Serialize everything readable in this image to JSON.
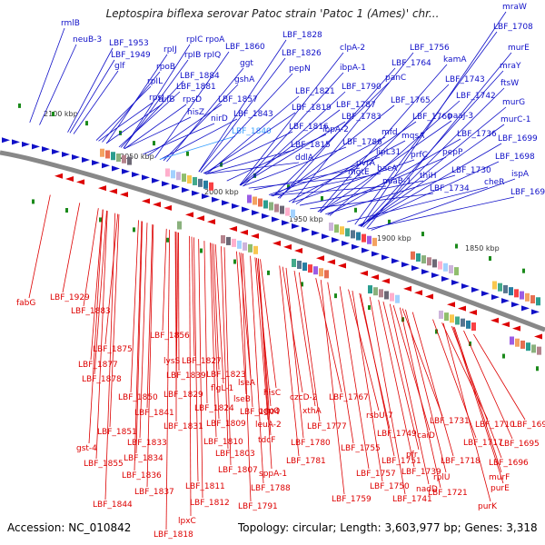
{
  "title": "Leptospira biflexa serovar Patoc strain 'Patoc 1 (Ames)' chr...",
  "footer": {
    "accession": "Accession: NC_010842",
    "summary": "Topology: circular; Length: 3,603,977 bp; Genes: 3,318"
  },
  "scale_labels": [
    "2100 kbp",
    "2050 kbp",
    "2000 kbp",
    "1950 kbp",
    "1900 kbp",
    "1850 kbp"
  ],
  "colors": {
    "upper": "#1010c8",
    "lower": "#dd0000",
    "highlight": "#3aa0ff",
    "backbone": "#888888"
  },
  "upper_labels": [
    "rmlB",
    "neuB-3",
    "LBF_1953",
    "LBF_1949",
    "glf",
    "rpIJ",
    "rpoB",
    "rpIL",
    "rpsJ",
    "tufB",
    "rpIC rpoA",
    "rpIB rpIQ",
    "LBF_1884",
    "LBF_1881",
    "rpsD",
    "hisZ",
    "nirD",
    "LBF_1860",
    "ggt",
    "gshA",
    "LBF_1857",
    "LBF_1843",
    "LBF_1840",
    "LBF_1828",
    "LBF_1826",
    "pepN",
    "LBF_1821",
    "LBF_1819",
    "LBF_1816",
    "LBF_1815",
    "ddlA",
    "clpA-2",
    "ibpA-1",
    "LBF_1790",
    "LBF_1787",
    "LBF_1783",
    "ibpA-2",
    "LBF_1786",
    "uvrA",
    "mgtE",
    "panC",
    "LBF_1765",
    "mfd",
    "lipL31",
    "bacA",
    "miaB-1",
    "LBF_1756",
    "LBF_1764",
    "LBF_1760",
    "mqsA",
    "prfC",
    "thiH",
    "kamA",
    "LBF_1743",
    "LBF_1742",
    "paaJ-3",
    "LBF_1736",
    "pepP",
    "LBF_1730",
    "LBF_1734",
    "mraW",
    "LBF_1708",
    "murE",
    "mraY",
    "ftsW",
    "murG",
    "murC-1",
    "LBF_1699",
    "LBF_1698",
    "ispA",
    "cheR",
    "LBF_1694"
  ],
  "lower_labels": [
    "fabG",
    "LBF_1929",
    "LBF_1883",
    "LBF_1875",
    "LBF_1877",
    "LBF_1878",
    "LBF_1850",
    "LBF_1856",
    "lysS",
    "LBF_1839",
    "LBF_1841",
    "LBF_1829",
    "LBF_1851",
    "LBF_1831",
    "gst-4",
    "LBF_1833",
    "LBF_1855",
    "LBF_1834",
    "LBF_1836",
    "LBF_1837",
    "LBF_1844",
    "LBF_1827",
    "LBF_1823",
    "LBF_1824",
    "flgL-1",
    "lseA",
    "lseB",
    "LBF_1804",
    "LBF_1809",
    "LBF_1810",
    "LBF_1803",
    "LBF_1807",
    "LBF_1811",
    "LBF_1812",
    "lpxC",
    "LBF_1818",
    "hisC",
    "ugpQ",
    "leuA-2",
    "tdcF",
    "czcD-2",
    "xthA",
    "LBF_1777",
    "LBF_1780",
    "LBF_1781",
    "LBF_1788",
    "sppA-1",
    "LBF_1791",
    "LBF_1767",
    "rsbU-7",
    "LBF_1755",
    "LBF_1749",
    "LBF_1751",
    "LBF_1757",
    "LBF_1750",
    "LBF_1759",
    "LBF_1741",
    "LBF_1739",
    "pfr",
    "caiD",
    "nadD",
    "LBF_1731",
    "LBF_1718",
    "LBF_1717",
    "LBF_1721",
    "rplU",
    "LBF_1710",
    "murF",
    "purE",
    "purK",
    "LBF_1691",
    "LBF_1695",
    "LBF_1696"
  ]
}
